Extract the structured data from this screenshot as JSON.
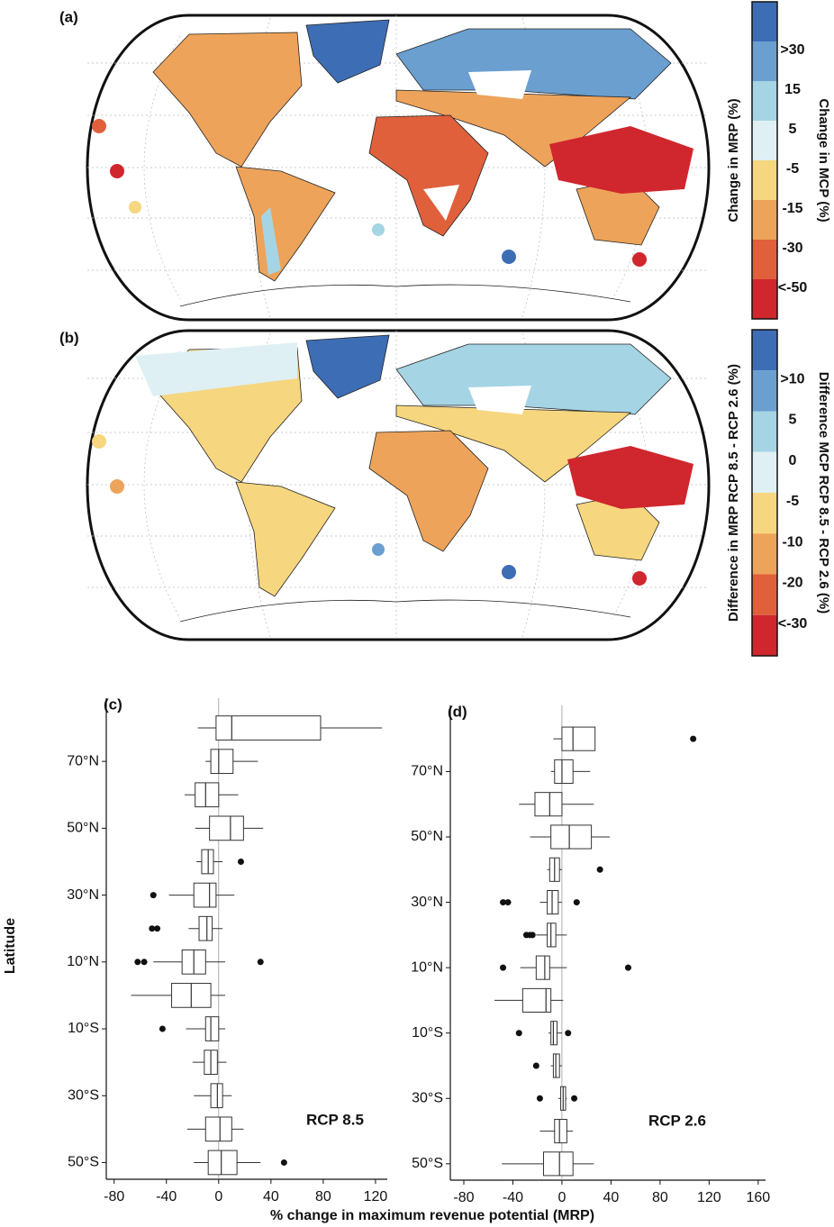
{
  "maps": [
    {
      "label": "(a)"
    },
    {
      "label": "(b)"
    }
  ],
  "colorbars": [
    {
      "colors": [
        "#3d6db5",
        "#6a9fd0",
        "#a5d4e4",
        "#dff0f4",
        "#f6d67e",
        "#eea35a",
        "#e0603c",
        "#d0262e"
      ],
      "labels": [
        ">30",
        "15",
        "5",
        "-5",
        "-15",
        "-30",
        "<-50"
      ],
      "title_left": "Change in MRP (%)",
      "title_right": "Change in MCP (%)"
    },
    {
      "colors": [
        "#3d6db5",
        "#6a9fd0",
        "#a5d4e4",
        "#dff0f4",
        "#f6d67e",
        "#eea35a",
        "#e0603c",
        "#d0262e"
      ],
      "labels": [
        ">10",
        "5",
        "0",
        "-5",
        "-10",
        "-20",
        "<-30"
      ],
      "title_left": "Difference in MRP RCP 8.5 - RCP 2.6 (%)",
      "title_right": "Difference MCP RCP 8.5 - RCP 2.6 (%)"
    }
  ],
  "y_label": "Latitude",
  "x_label": "% change in maximum revenue potential (MRP)",
  "chart_data": [
    {
      "type": "box",
      "label": "(c)",
      "annotation": "RCP 8.5",
      "categories": [
        null,
        "70°N",
        null,
        "50°N",
        null,
        "30°N",
        null,
        "10°N",
        null,
        "10°S",
        null,
        "30°S",
        null,
        "50°S"
      ],
      "whislo": [
        -16,
        -10,
        -26,
        -18,
        -17,
        -38,
        -23,
        -50,
        -67,
        -25,
        -20,
        -19,
        -24,
        -19
      ],
      "q1": [
        -2,
        -6,
        -18,
        -7,
        -13,
        -19,
        -15,
        -28,
        -36,
        -10,
        -11,
        -6,
        -10,
        -8
      ],
      "med": [
        10,
        0,
        -10,
        9,
        -8,
        -7,
        -9,
        -19,
        -21,
        -6,
        -6,
        -1,
        1,
        2
      ],
      "q3": [
        78,
        11,
        0,
        19,
        -4,
        -2,
        -5,
        -10,
        -6,
        0,
        -1,
        3,
        10,
        14
      ],
      "whishi": [
        125,
        30,
        15,
        34,
        3,
        12,
        3,
        5,
        5,
        5,
        6,
        10,
        19,
        32
      ],
      "outliers": [
        [],
        [],
        [],
        [],
        [
          17
        ],
        [
          -50
        ],
        [
          -51,
          -47
        ],
        [
          -62,
          -57,
          32
        ],
        [],
        [
          -43
        ],
        [],
        [],
        [],
        [
          50
        ]
      ],
      "xlim": [
        -86,
        129
      ],
      "xticks": [
        -80,
        -40,
        0,
        40,
        80,
        120
      ],
      "color": "#333333"
    },
    {
      "type": "box",
      "label": "(d)",
      "annotation": "RCP 2.6",
      "categories": [
        null,
        "70°N",
        null,
        "50°N",
        null,
        "30°N",
        null,
        "10°N",
        null,
        "10°S",
        null,
        "30°S",
        null,
        "50°S"
      ],
      "whislo": [
        -7,
        -9,
        -35,
        -26,
        -12,
        -18,
        -21,
        -34,
        -55,
        -11,
        -9,
        -3,
        -18,
        -49
      ],
      "q1": [
        0,
        -6,
        -22,
        -9,
        -10,
        -12,
        -12,
        -21,
        -32,
        -9,
        -7,
        -1,
        -6,
        -15
      ],
      "med": [
        9,
        0,
        -10,
        6,
        -6,
        -8,
        -9,
        -14,
        -13,
        -7,
        -5,
        1,
        -2,
        -2
      ],
      "q3": [
        27,
        9,
        0,
        24,
        -2,
        -3,
        -5,
        -10,
        -9,
        -4,
        -2,
        3,
        4,
        9
      ],
      "whishi": [
        27,
        23,
        26,
        39,
        0,
        0,
        4,
        4,
        1,
        0,
        0,
        4,
        9,
        26
      ],
      "outliers": [
        [
          107
        ],
        [],
        [],
        [],
        [
          31
        ],
        [
          -48,
          -44,
          12
        ],
        [
          -29,
          -26,
          -24
        ],
        [
          -48,
          54
        ],
        [],
        [
          -35,
          5
        ],
        [
          -21
        ],
        [
          -18,
          10
        ],
        [],
        []
      ],
      "xlim": [
        -91,
        166
      ],
      "xticks": [
        -80,
        -40,
        0,
        40,
        80,
        120,
        160
      ],
      "color": "#333333"
    }
  ]
}
